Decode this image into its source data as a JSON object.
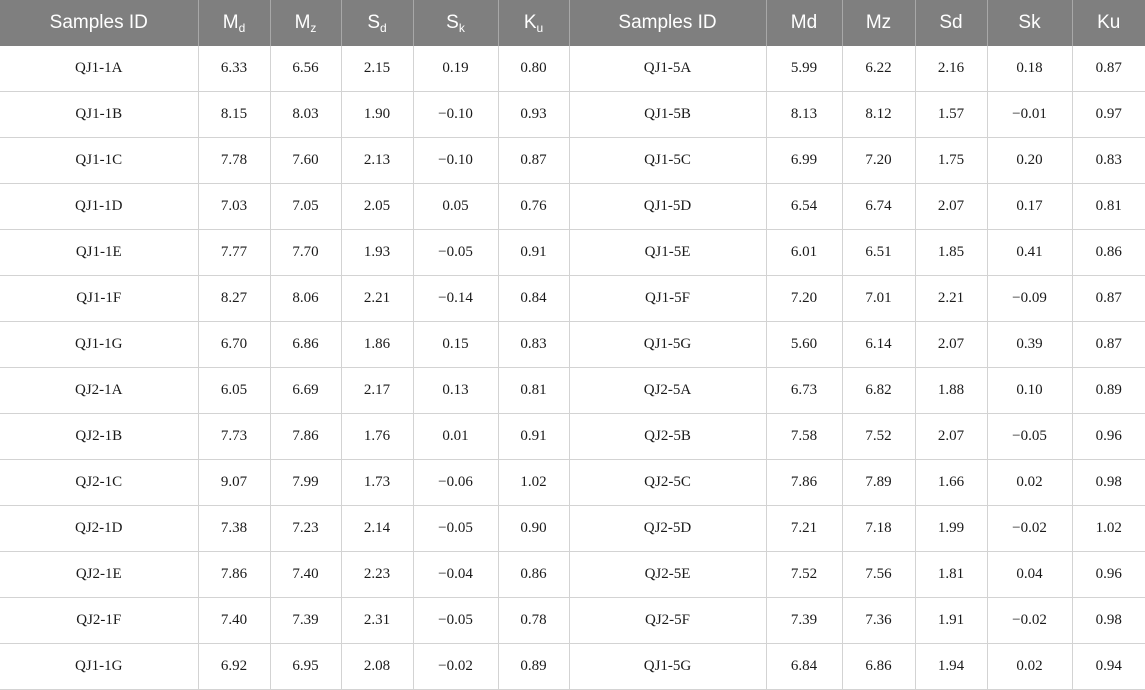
{
  "header": {
    "left": {
      "id": "Samples ID",
      "md": {
        "base": "M",
        "sub": "d"
      },
      "mz": {
        "base": "M",
        "sub": "z"
      },
      "sd": {
        "base": "S",
        "sub": "d"
      },
      "sk": {
        "base": "S",
        "sub": "k"
      },
      "ku": {
        "base": "K",
        "sub": "u"
      }
    },
    "right": {
      "id": "Samples ID",
      "md": "Md",
      "mz": "Mz",
      "sd": "Sd",
      "sk": "Sk",
      "ku": "Ku"
    }
  },
  "rows": [
    {
      "l": [
        "QJ1-1A",
        "6.33",
        "6.56",
        "2.15",
        "0.19",
        "0.80"
      ],
      "r": [
        "QJ1-5A",
        "5.99",
        "6.22",
        "2.16",
        "0.18",
        "0.87"
      ]
    },
    {
      "l": [
        "QJ1-1B",
        "8.15",
        "8.03",
        "1.90",
        "−0.10",
        "0.93"
      ],
      "r": [
        "QJ1-5B",
        "8.13",
        "8.12",
        "1.57",
        "−0.01",
        "0.97"
      ]
    },
    {
      "l": [
        "QJ1-1C",
        "7.78",
        "7.60",
        "2.13",
        "−0.10",
        "0.87"
      ],
      "r": [
        "QJ1-5C",
        "6.99",
        "7.20",
        "1.75",
        "0.20",
        "0.83"
      ]
    },
    {
      "l": [
        "QJ1-1D",
        "7.03",
        "7.05",
        "2.05",
        "0.05",
        "0.76"
      ],
      "r": [
        "QJ1-5D",
        "6.54",
        "6.74",
        "2.07",
        "0.17",
        "0.81"
      ]
    },
    {
      "l": [
        "QJ1-1E",
        "7.77",
        "7.70",
        "1.93",
        "−0.05",
        "0.91"
      ],
      "r": [
        "QJ1-5E",
        "6.01",
        "6.51",
        "1.85",
        "0.41",
        "0.86"
      ]
    },
    {
      "l": [
        "QJ1-1F",
        "8.27",
        "8.06",
        "2.21",
        "−0.14",
        "0.84"
      ],
      "r": [
        "QJ1-5F",
        "7.20",
        "7.01",
        "2.21",
        "−0.09",
        "0.87"
      ]
    },
    {
      "l": [
        "QJ1-1G",
        "6.70",
        "6.86",
        "1.86",
        "0.15",
        "0.83"
      ],
      "r": [
        "QJ1-5G",
        "5.60",
        "6.14",
        "2.07",
        "0.39",
        "0.87"
      ]
    },
    {
      "l": [
        "QJ2-1A",
        "6.05",
        "6.69",
        "2.17",
        "0.13",
        "0.81"
      ],
      "r": [
        "QJ2-5A",
        "6.73",
        "6.82",
        "1.88",
        "0.10",
        "0.89"
      ]
    },
    {
      "l": [
        "QJ2-1B",
        "7.73",
        "7.86",
        "1.76",
        "0.01",
        "0.91"
      ],
      "r": [
        "QJ2-5B",
        "7.58",
        "7.52",
        "2.07",
        "−0.05",
        "0.96"
      ]
    },
    {
      "l": [
        "QJ2-1C",
        "9.07",
        "7.99",
        "1.73",
        "−0.06",
        "1.02"
      ],
      "r": [
        "QJ2-5C",
        "7.86",
        "7.89",
        "1.66",
        "0.02",
        "0.98"
      ]
    },
    {
      "l": [
        "QJ2-1D",
        "7.38",
        "7.23",
        "2.14",
        "−0.05",
        "0.90"
      ],
      "r": [
        "QJ2-5D",
        "7.21",
        "7.18",
        "1.99",
        "−0.02",
        "1.02"
      ]
    },
    {
      "l": [
        "QJ2-1E",
        "7.86",
        "7.40",
        "2.23",
        "−0.04",
        "0.86"
      ],
      "r": [
        "QJ2-5E",
        "7.52",
        "7.56",
        "1.81",
        "0.04",
        "0.96"
      ]
    },
    {
      "l": [
        "QJ2-1F",
        "7.40",
        "7.39",
        "2.31",
        "−0.05",
        "0.78"
      ],
      "r": [
        "QJ2-5F",
        "7.39",
        "7.36",
        "1.91",
        "−0.02",
        "0.98"
      ]
    },
    {
      "l": [
        "QJ1-1G",
        "6.92",
        "6.95",
        "2.08",
        "−0.02",
        "0.89"
      ],
      "r": [
        "QJ1-5G",
        "6.84",
        "6.86",
        "1.94",
        "0.02",
        "0.94"
      ]
    }
  ]
}
